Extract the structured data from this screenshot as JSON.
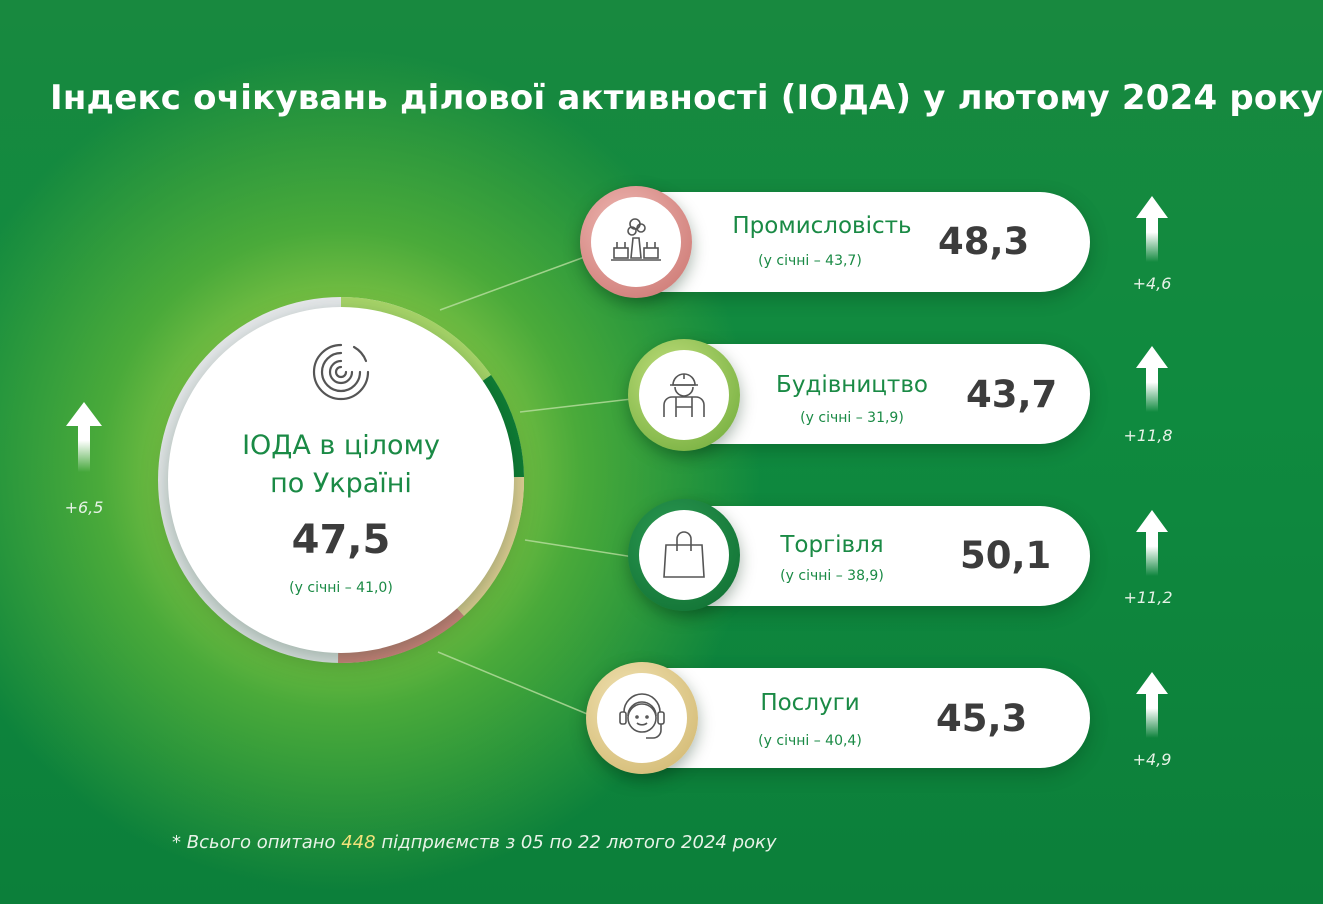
{
  "title": "Індекс очікувань ділової активності (ІОДА) у лютому 2024 року",
  "overall": {
    "label": "ІОДА в цілому\nпо Україні",
    "value": "47,5",
    "previous": "(у січні – 41,0)",
    "delta": "+6,5",
    "icon": "spiral-logo-icon"
  },
  "sectors": [
    {
      "name": "Промисловість",
      "value": "48,3",
      "previous": "(у січні – 43,7)",
      "delta": "+4,6",
      "icon": "factory-icon",
      "color": "#d98a86"
    },
    {
      "name": "Будівництво",
      "value": "43,7",
      "previous": "(у січні – 31,9)",
      "delta": "+11,8",
      "icon": "construction-worker-icon",
      "color": "#8cc43f"
    },
    {
      "name": "Торгівля",
      "value": "50,1",
      "previous": "(у січні – 38,9)",
      "delta": "+11,2",
      "icon": "shopping-bag-icon",
      "color": "#137a3a"
    },
    {
      "name": "Послуги",
      "value": "45,3",
      "previous": "(у січні – 40,4)",
      "delta": "+4,9",
      "icon": "headset-operator-icon",
      "color": "#e3cf92"
    }
  ],
  "footnote": {
    "prefix": "* Всього опитано ",
    "count": "448",
    "suffix": " підприємств з 05 по 22 лютого 2024 року"
  },
  "colors": {
    "background": "#0f8a3f",
    "accent_text": "#1a8a45",
    "value_text": "#3c3c3c",
    "highlight": "#f3e27a"
  }
}
